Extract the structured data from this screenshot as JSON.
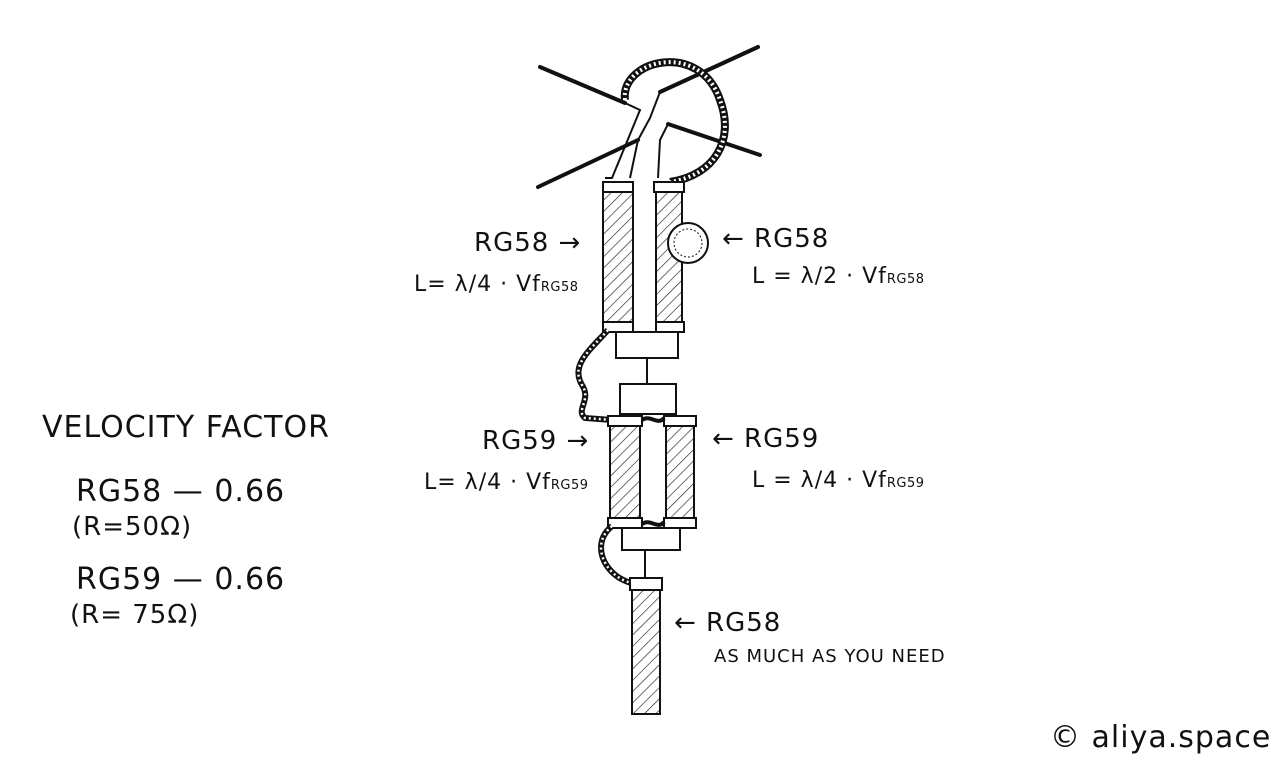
{
  "labels": {
    "top_left_cable": "RG58 →",
    "top_left_formula_main": "L= λ/4 · Vf",
    "top_left_formula_sub": "RG58",
    "top_right_cable": "← RG58",
    "top_right_formula_main": "L = λ/2 · Vf",
    "top_right_formula_sub": "RG58",
    "mid_left_cable": "RG59 →",
    "mid_left_formula_main": "L= λ/4 · Vf",
    "mid_left_formula_sub": "RG59",
    "mid_right_cable": "← RG59",
    "mid_right_formula_main": "L = λ/4 · Vf",
    "mid_right_formula_sub": "RG59",
    "feed_cable": "← RG58",
    "feed_note": "AS MUCH AS YOU NEED"
  },
  "velocity": {
    "title": "VELOCITY FACTOR",
    "rg58_line": "RG58 — 0.66",
    "rg58_imp": "(R=50Ω)",
    "rg59_line": "RG59 — 0.66",
    "rg59_imp": "(R= 75Ω)"
  },
  "credit": "© aliya.space"
}
